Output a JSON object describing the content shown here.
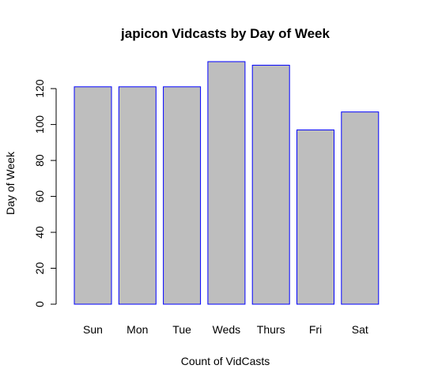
{
  "chart_data": {
    "type": "bar",
    "title": "japicon Vidcasts by Day of Week",
    "xlabel": "Count of VidCasts",
    "ylabel": "Day of Week",
    "categories": [
      "Sun",
      "Mon",
      "Tue",
      "Weds",
      "Thurs",
      "Fri",
      "Sat"
    ],
    "values": [
      121,
      121,
      121,
      135,
      133,
      97,
      107
    ],
    "ylim": [
      0,
      135
    ],
    "yticks": [
      0,
      20,
      40,
      60,
      80,
      100,
      120
    ],
    "grid": false,
    "legend": "none",
    "bar_fill": "#bebebe",
    "bar_stroke": "#0000ff",
    "axis_color": "#000000"
  }
}
